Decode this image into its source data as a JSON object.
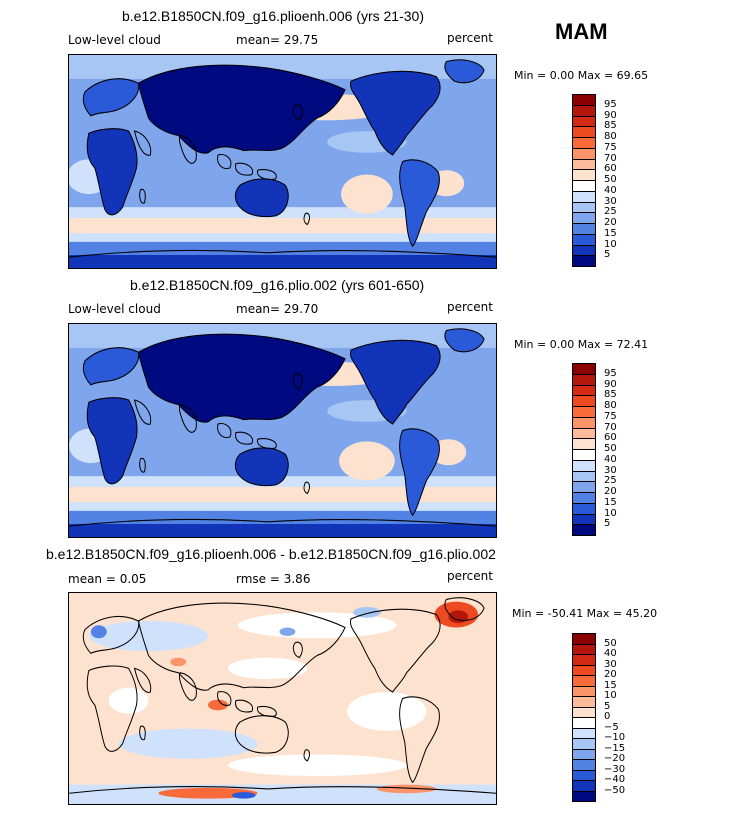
{
  "season": "MAM",
  "panels": [
    {
      "title": "b.e12.B1850CN.f09_g16.plioenh.006 (yrs 21-30)",
      "left_label": "Low-level cloud",
      "mid_label": "mean=  29.75",
      "right_label": "percent",
      "minmax": "Min =    0.00 Max =   69.65"
    },
    {
      "title": "b.e12.B1850CN.f09_g16.plio.002 (yrs 601-650)",
      "left_label": "Low-level cloud",
      "mid_label": "mean=  29.70",
      "right_label": "percent",
      "minmax": "Min =    0.00 Max =   72.41"
    },
    {
      "title": "b.e12.B1850CN.f09_g16.plioenh.006 - b.e12.B1850CN.f09_g16.plio.002",
      "left_label": "mean =    0.05",
      "mid_label": "rmse =   3.86",
      "right_label": "percent",
      "minmax": "Min = -50.41 Max =  45.20"
    }
  ],
  "abs_colorbar": {
    "labels": [
      "95",
      "90",
      "85",
      "80",
      "75",
      "70",
      "60",
      "50",
      "40",
      "30",
      "25",
      "20",
      "15",
      "10",
      "5"
    ],
    "colors": [
      "#8b0000",
      "#b3170c",
      "#d42a14",
      "#ee4a22",
      "#f96a3a",
      "#fb9468",
      "#fcbc9c",
      "#fde3cf",
      "#ffffff",
      "#cfe1fb",
      "#a8c6f4",
      "#7fa6ec",
      "#5283e4",
      "#2a5ad8",
      "#1234b8",
      "#000a80"
    ]
  },
  "diff_colorbar": {
    "labels": [
      "50",
      "40",
      "30",
      "20",
      "15",
      "10",
      "5",
      "0",
      "−5",
      "−10",
      "−15",
      "−20",
      "−30",
      "−40",
      "−50"
    ],
    "colors": [
      "#8b0000",
      "#b3170c",
      "#d42a14",
      "#ee4a22",
      "#f96a3a",
      "#fb9468",
      "#fcbc9c",
      "#fde3cf",
      "#ffffff",
      "#cfe1fb",
      "#a8c6f4",
      "#7fa6ec",
      "#5283e4",
      "#2a5ad8",
      "#1234b8",
      "#000a80"
    ]
  }
}
